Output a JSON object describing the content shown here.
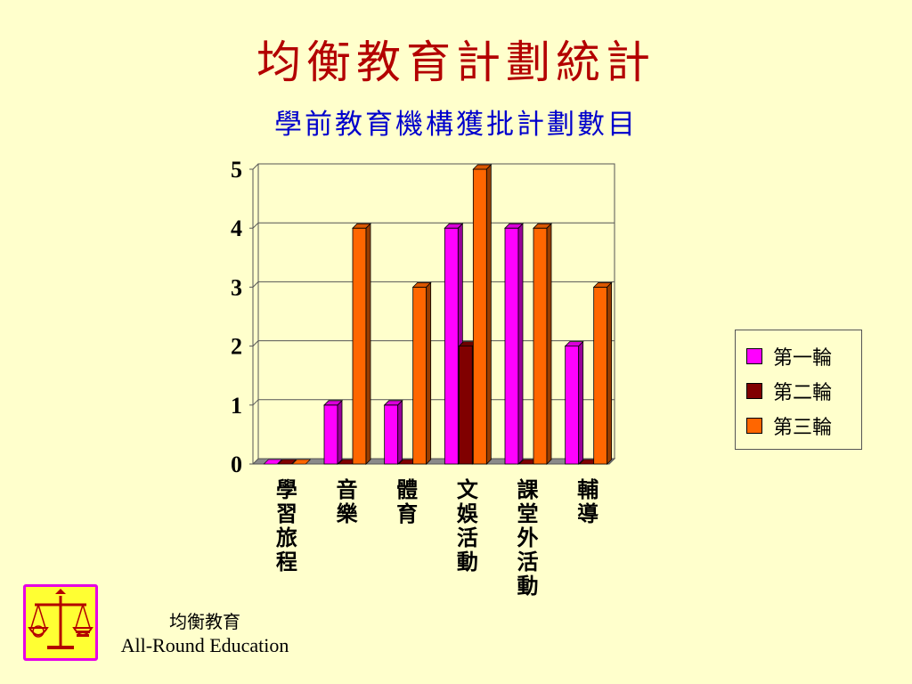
{
  "header": {
    "title": "均衡教育計劃統計",
    "subtitle": "學前教育機構獲批計劃數目"
  },
  "chart_data": {
    "type": "bar",
    "title": "均衡教育計劃統計",
    "subtitle": "學前教育機構獲批計劃數目",
    "xlabel": "",
    "ylabel": "",
    "ylim": [
      0,
      5
    ],
    "yticks": [
      0,
      1,
      2,
      3,
      4,
      5
    ],
    "grid": true,
    "legend_position": "right",
    "categories": [
      "學習旅程",
      "音樂",
      "體育",
      "文娛活動",
      "課堂外活動",
      "輔導"
    ],
    "series": [
      {
        "name": "第一輪",
        "color": "#ff00ff",
        "values": [
          0,
          1,
          1,
          4,
          4,
          2
        ]
      },
      {
        "name": "第二輪",
        "color": "#800000",
        "values": [
          0,
          0,
          0,
          2,
          0,
          0
        ]
      },
      {
        "name": "第三輪",
        "color": "#ff6600",
        "values": [
          0,
          4,
          3,
          5,
          4,
          3
        ]
      }
    ]
  },
  "legend": {
    "items": [
      {
        "label": "第一輪",
        "color": "#ff00ff"
      },
      {
        "label": "第二輪",
        "color": "#800000"
      },
      {
        "label": "第三輪",
        "color": "#ff6600"
      }
    ]
  },
  "footer": {
    "logo_icon": "balance-scale-icon",
    "chinese": "均衡教育",
    "english": "All-Round Education"
  }
}
